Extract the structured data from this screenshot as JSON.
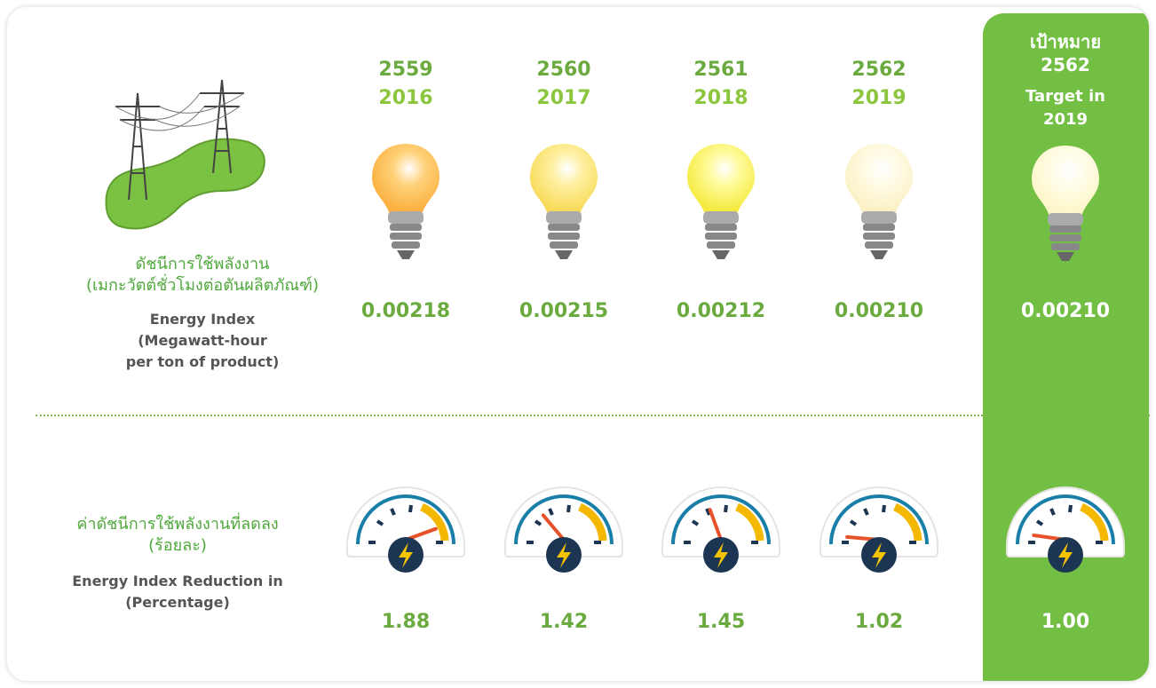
{
  "left": {
    "energy_index_th": [
      "ดัชนีการใช้พลังงาน",
      "(เมกะวัตต์ชั่วโมงต่อตันผลิตภัณฑ์)"
    ],
    "energy_index_en": [
      "Energy Index",
      "(Megawatt-hour",
      "per ton of product)"
    ],
    "reduction_th": [
      "ค่าดัชนีการใช้พลังงานที่ลดลง",
      "(ร้อยละ)"
    ],
    "reduction_en": [
      "Energy Index Reduction in",
      "(Percentage)"
    ]
  },
  "years": [
    {
      "th": "2559",
      "en": "2016",
      "energy_index": "0.00218",
      "reduction": "1.88"
    },
    {
      "th": "2560",
      "en": "2017",
      "energy_index": "0.00215",
      "reduction": "1.42"
    },
    {
      "th": "2561",
      "en": "2018",
      "energy_index": "0.00212",
      "reduction": "1.45"
    },
    {
      "th": "2562",
      "en": "2019",
      "energy_index": "0.00210",
      "reduction": "1.02"
    }
  ],
  "target": {
    "th_label": "เป้าหมาย",
    "th_year": "2562",
    "en_label": "Target in",
    "en_year": "2019",
    "energy_index": "0.00210",
    "reduction": "1.00"
  }
}
